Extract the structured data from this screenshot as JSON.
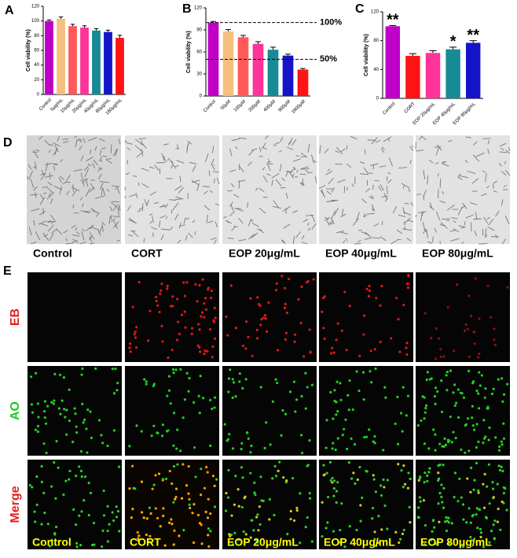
{
  "chart_data": [
    {
      "type": "bar",
      "label": "A",
      "y_label": "Cell viability (%)",
      "categories": [
        "Control",
        "5μg/mL",
        "10μg/mL",
        "20μg/mL",
        "40μg/mL",
        "80μg/mL",
        "160μg/mL"
      ],
      "values": [
        100,
        103,
        93,
        91,
        87,
        85,
        77
      ],
      "errors": [
        1.5,
        2.5,
        2.5,
        2.5,
        2.5,
        2.5,
        3.5
      ],
      "colors": [
        "#c000c8",
        "#f4c080",
        "#ff5a5a",
        "#ff3399",
        "#178a96",
        "#1414c8",
        "#ff1414"
      ],
      "ylim": [
        0,
        120
      ],
      "yticks": [
        0,
        20,
        40,
        60,
        80,
        100,
        120
      ]
    },
    {
      "type": "bar",
      "label": "B",
      "y_label": "Cell viability (%)",
      "categories": [
        "Control",
        "50μM",
        "100μM",
        "200μM",
        "400μM",
        "800μM",
        "1600μM"
      ],
      "values": [
        100,
        88,
        80,
        71,
        63,
        55,
        36
      ],
      "errors": [
        1.5,
        2.5,
        2.5,
        3,
        3.5,
        2,
        1.5
      ],
      "colors": [
        "#c000c8",
        "#f4c080",
        "#ff5a5a",
        "#ff3399",
        "#178a96",
        "#1414c8",
        "#ff1414"
      ],
      "ylim": [
        0,
        120
      ],
      "yticks": [
        0,
        30,
        60,
        90,
        120
      ],
      "ref_lines": [
        {
          "value": 100,
          "label": "100%"
        },
        {
          "value": 50,
          "label": "50%"
        }
      ]
    },
    {
      "type": "bar",
      "label": "C",
      "y_label": "Cell viability (%)",
      "categories": [
        "Control",
        "CORT",
        "EOP 20μg/mL",
        "EOP 40μg/mL",
        "EOP 80μg/mL"
      ],
      "values": [
        100,
        59,
        63,
        68,
        77
      ],
      "errors": [
        1,
        3,
        3,
        3,
        3
      ],
      "annotations": [
        "**",
        null,
        null,
        "*",
        "**"
      ],
      "colors": [
        "#c000c8",
        "#ff1414",
        "#ff3399",
        "#178a96",
        "#1414c8"
      ],
      "ylim": [
        0,
        120
      ],
      "yticks": [
        0,
        40,
        80,
        120
      ]
    }
  ],
  "micrographs": {
    "label": "D",
    "captions": [
      "Control",
      "CORT",
      "EOP 20μg/mL",
      "EOP 40μg/mL",
      "EOP 80μg/mL"
    ]
  },
  "staining": {
    "label": "E",
    "rows": [
      "EB",
      "AO",
      "Merge"
    ],
    "captions": [
      "Control",
      "CORT",
      "EOP 20μg/mL",
      "EOP 40μg/mL",
      "EOP 80μg/mL"
    ]
  }
}
